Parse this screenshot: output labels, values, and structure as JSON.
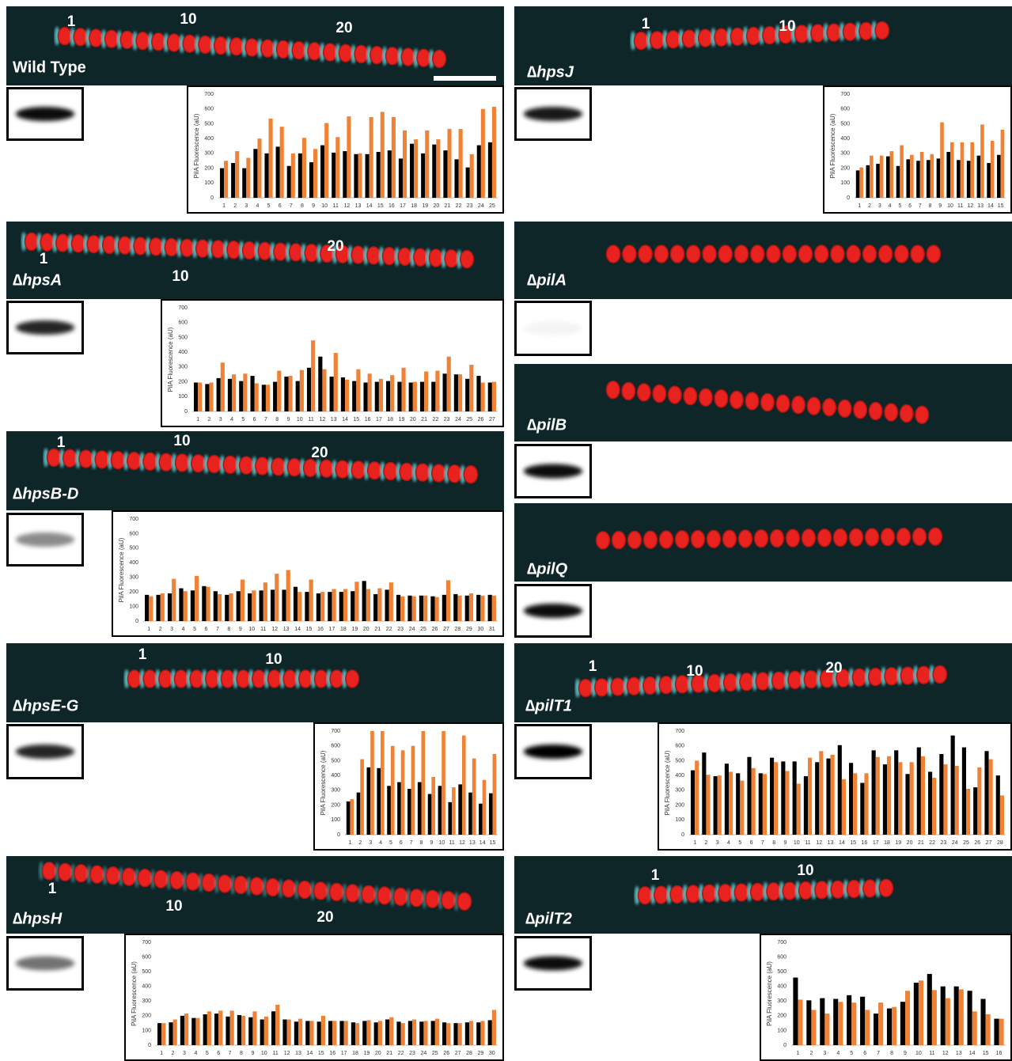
{
  "panels": [
    {
      "label": "Wild Type",
      "markers": [
        "1",
        "10",
        "20"
      ],
      "chart_data": {
        "type": "bar",
        "ylabel": "PilA Fluorescence (aU)",
        "ylim": [
          0,
          700
        ],
        "yticks": [
          0,
          100,
          200,
          300,
          400,
          500,
          600,
          700
        ],
        "categories": [
          "1",
          "2",
          "3",
          "4",
          "5",
          "6",
          "7",
          "8",
          "9",
          "10",
          "11",
          "12",
          "13",
          "14",
          "15",
          "16",
          "17",
          "18",
          "19",
          "20",
          "21",
          "22",
          "23",
          "24",
          "25"
        ],
        "series": [
          {
            "color": "#000000",
            "values": [
              200,
              235,
              200,
              330,
              300,
              345,
              215,
              300,
              240,
              355,
              305,
              315,
              295,
              295,
              310,
              320,
              265,
              365,
              300,
              360,
              320,
              260,
              205,
              355,
              375
            ]
          },
          {
            "color": "#f08236",
            "values": [
              250,
              315,
              270,
              400,
              535,
              480,
              300,
              405,
              330,
              505,
              410,
              550,
              300,
              545,
              580,
              545,
              455,
              395,
              455,
              395,
              465,
              465,
              295,
              600,
              615
            ]
          }
        ]
      }
    },
    {
      "label": "∆hpsJ",
      "markers": [
        "1",
        "10"
      ],
      "chart_data": {
        "type": "bar",
        "ylabel": "PilA Fluorescence (aU)",
        "ylim": [
          0,
          700
        ],
        "yticks": [
          0,
          100,
          200,
          300,
          400,
          500,
          600,
          700
        ],
        "categories": [
          "1",
          "2",
          "3",
          "4",
          "5",
          "6",
          "7",
          "8",
          "9",
          "10",
          "11",
          "12",
          "13",
          "14",
          "15"
        ],
        "series": [
          {
            "color": "#000000",
            "values": [
              185,
              220,
              230,
              280,
              215,
              260,
              250,
              255,
              265,
              310,
              255,
              250,
              285,
              235,
              290
            ]
          },
          {
            "color": "#f08236",
            "values": [
              205,
              285,
              285,
              315,
              355,
              290,
              310,
              295,
              510,
              375,
              375,
              375,
              495,
              385,
              460
            ]
          }
        ]
      }
    },
    {
      "label": "∆hpsA",
      "markers": [
        "1",
        "10",
        "20"
      ],
      "chart_data": {
        "type": "bar",
        "ylabel": "PilA Fluorescence (aU)",
        "ylim": [
          0,
          700
        ],
        "yticks": [
          0,
          100,
          200,
          300,
          400,
          500,
          600,
          700
        ],
        "categories": [
          "1",
          "2",
          "3",
          "4",
          "5",
          "6",
          "7",
          "8",
          "9",
          "10",
          "11",
          "12",
          "13",
          "14",
          "15",
          "16",
          "17",
          "18",
          "19",
          "20",
          "21",
          "22",
          "23",
          "24",
          "25",
          "26",
          "27"
        ],
        "series": [
          {
            "color": "#000000",
            "values": [
              195,
              185,
              225,
              220,
              205,
              240,
              180,
              200,
              235,
              205,
              295,
              370,
              235,
              230,
              205,
              195,
              200,
              205,
              200,
              195,
              200,
              200,
              255,
              250,
              220,
              240,
              195
            ]
          },
          {
            "color": "#f08236",
            "values": [
              195,
              195,
              330,
              250,
              255,
              190,
              180,
              275,
              240,
              280,
              480,
              285,
              395,
              215,
              285,
              255,
              220,
              245,
              295,
              200,
              270,
              275,
              370,
              250,
              315,
              195,
              200
            ]
          }
        ]
      }
    },
    {
      "label": "∆pilA",
      "markers": []
    },
    {
      "label": "∆hpsB-D",
      "markers": [
        "1",
        "10",
        "20"
      ],
      "chart_data": {
        "type": "bar",
        "ylabel": "PilA Fluorescence (aU)",
        "ylim": [
          0,
          700
        ],
        "yticks": [
          0,
          100,
          200,
          300,
          400,
          500,
          600,
          700
        ],
        "categories": [
          "1",
          "2",
          "3",
          "4",
          "5",
          "6",
          "7",
          "8",
          "9",
          "10",
          "11",
          "12",
          "13",
          "14",
          "15",
          "16",
          "17",
          "18",
          "19",
          "20",
          "21",
          "22",
          "23",
          "24",
          "25",
          "26",
          "27",
          "28",
          "29",
          "30",
          "31"
        ],
        "series": [
          {
            "color": "#000000",
            "values": [
              180,
              180,
              190,
              225,
              210,
              240,
              205,
              180,
              205,
              190,
              210,
              215,
              215,
              235,
              200,
              190,
              200,
              200,
              205,
              275,
              185,
              215,
              180,
              175,
              175,
              170,
              180,
              185,
              175,
              180,
              180
            ]
          },
          {
            "color": "#f08236",
            "values": [
              170,
              190,
              290,
              205,
              310,
              235,
              185,
              190,
              285,
              210,
              265,
              325,
              350,
              200,
              285,
              200,
              220,
              220,
              270,
              220,
              225,
              265,
              170,
              170,
              175,
              165,
              280,
              175,
              190,
              175,
              175
            ]
          }
        ]
      }
    },
    {
      "label": "∆pilB",
      "markers": []
    },
    {
      "label": "∆pilQ",
      "markers": []
    },
    {
      "label": "∆hpsE-G",
      "markers": [
        "1",
        "10"
      ],
      "chart_data": {
        "type": "bar",
        "ylabel": "PilA Fluorescence (aU)",
        "ylim": [
          0,
          700
        ],
        "yticks": [
          0,
          100,
          200,
          300,
          400,
          500,
          600,
          700
        ],
        "categories": [
          "1",
          "2",
          "3",
          "4",
          "5",
          "6",
          "7",
          "8",
          "9",
          "10",
          "11",
          "12",
          "13",
          "14",
          "15"
        ],
        "series": [
          {
            "color": "#000000",
            "values": [
              225,
              285,
              455,
              450,
              330,
              355,
              310,
              355,
              275,
              330,
              220,
              340,
              285,
              210,
              280
            ]
          },
          {
            "color": "#f08236",
            "values": [
              240,
              510,
              700,
              700,
              600,
              570,
              600,
              700,
              390,
              700,
              320,
              670,
              515,
              370,
              545
            ]
          }
        ]
      }
    },
    {
      "label": "∆pilT1",
      "markers": [
        "1",
        "10",
        "20"
      ],
      "chart_data": {
        "type": "bar",
        "ylabel": "PilA Fluorescence (aU)",
        "ylim": [
          0,
          700
        ],
        "yticks": [
          0,
          100,
          200,
          300,
          400,
          500,
          600,
          700
        ],
        "categories": [
          "1",
          "2",
          "3",
          "4",
          "5",
          "6",
          "7",
          "8",
          "9",
          "10",
          "11",
          "12",
          "13",
          "14",
          "15",
          "16",
          "17",
          "18",
          "19",
          "20",
          "21",
          "22",
          "23",
          "24",
          "25",
          "26",
          "27",
          "28"
        ],
        "series": [
          {
            "color": "#000000",
            "values": [
              435,
              555,
              395,
              480,
              415,
              525,
              415,
              520,
              495,
              495,
              395,
              490,
              515,
              605,
              485,
              350,
              570,
              475,
              570,
              410,
              590,
              425,
              545,
              670,
              590,
              320,
              565,
              400
            ]
          },
          {
            "color": "#f08236",
            "values": [
              500,
              405,
              400,
              425,
              365,
              450,
              410,
              490,
              430,
              345,
              520,
              565,
              540,
              375,
              415,
              415,
              525,
              530,
              490,
              490,
              530,
              385,
              475,
              465,
              310,
              455,
              510,
              265
            ]
          }
        ]
      }
    },
    {
      "label": "∆hpsH",
      "markers": [
        "1",
        "10",
        "20"
      ],
      "chart_data": {
        "type": "bar",
        "ylabel": "PilA Fluorescence (aU)",
        "ylim": [
          0,
          700
        ],
        "yticks": [
          0,
          100,
          200,
          300,
          400,
          500,
          600,
          700
        ],
        "categories": [
          "1",
          "2",
          "3",
          "4",
          "5",
          "6",
          "7",
          "8",
          "9",
          "10",
          "11",
          "12",
          "13",
          "14",
          "15",
          "16",
          "17",
          "18",
          "19",
          "20",
          "21",
          "22",
          "23",
          "24",
          "25",
          "26",
          "27",
          "28",
          "29",
          "30"
        ],
        "series": [
          {
            "color": "#000000",
            "values": [
              150,
              155,
              200,
              185,
              210,
              215,
              195,
              205,
              190,
              175,
              230,
              175,
              160,
              165,
              160,
              165,
              165,
              155,
              165,
              155,
              175,
              160,
              165,
              160,
              165,
              155,
              150,
              155,
              155,
              170
            ]
          },
          {
            "color": "#f08236",
            "values": [
              150,
              175,
              215,
              185,
              230,
              235,
              235,
              200,
              230,
              195,
              275,
              175,
              180,
              165,
              200,
              165,
              165,
              150,
              170,
              165,
              190,
              150,
              175,
              165,
              180,
              150,
              150,
              165,
              165,
              240
            ]
          }
        ]
      }
    },
    {
      "label": "∆pilT2",
      "markers": [
        "1",
        "10"
      ],
      "chart_data": {
        "type": "bar",
        "ylabel": "PilA Fluorescence (aU)",
        "ylim": [
          0,
          700
        ],
        "yticks": [
          0,
          100,
          200,
          300,
          400,
          500,
          600,
          700
        ],
        "categories": [
          "1",
          "2",
          "3",
          "4",
          "5",
          "6",
          "7",
          "8",
          "9",
          "10",
          "11",
          "12",
          "13",
          "14",
          "15",
          "16"
        ],
        "series": [
          {
            "color": "#000000",
            "values": [
              460,
              305,
              320,
              315,
              340,
              330,
              215,
              250,
              295,
              425,
              485,
              400,
              400,
              370,
              315,
              180
            ]
          },
          {
            "color": "#f08236",
            "values": [
              310,
              240,
              215,
              295,
              290,
              240,
              290,
              260,
              370,
              440,
              375,
              320,
              380,
              230,
              210,
              180
            ]
          }
        ]
      }
    }
  ]
}
